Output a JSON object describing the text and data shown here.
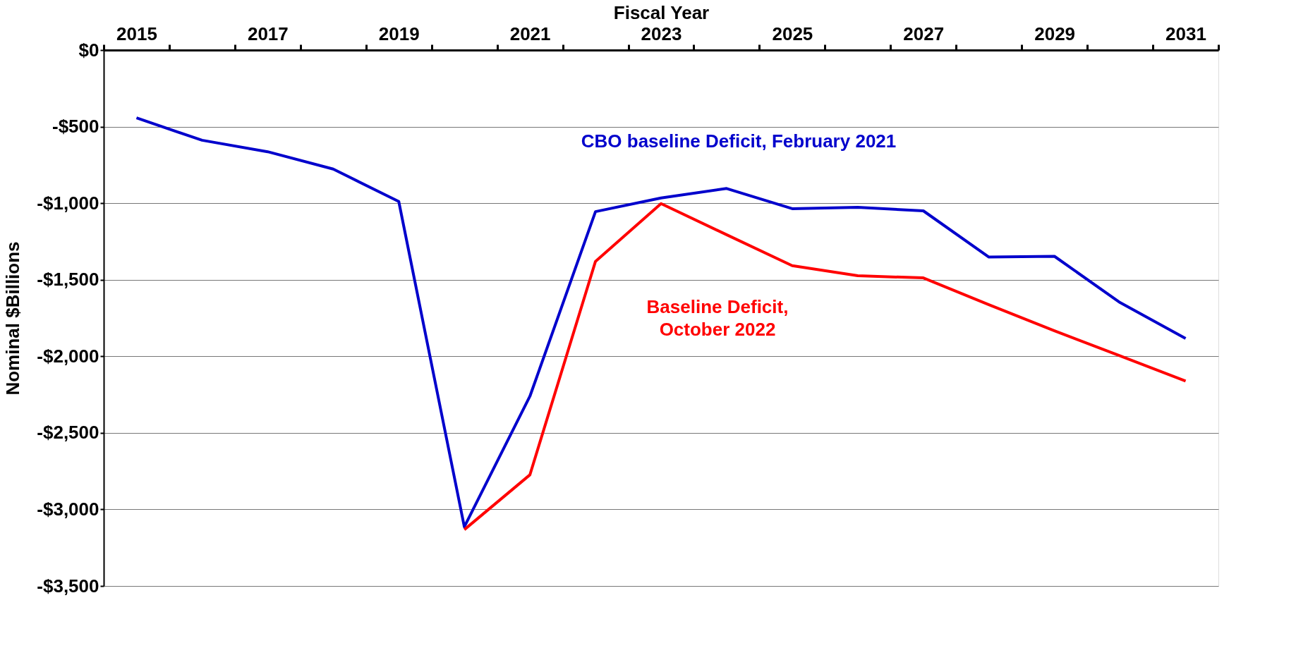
{
  "chart_data": {
    "type": "line",
    "xlabel": "Fiscal Year",
    "ylabel": "Nominal $Billions",
    "categories": [
      "2015",
      null,
      "2017",
      null,
      "2019",
      null,
      "2021",
      null,
      "2023",
      null,
      "2025",
      null,
      "2027",
      null,
      "2029",
      null,
      "2031"
    ],
    "series": [
      {
        "name": "CBO baseline Deficit, February 2021",
        "color": "#0000cc",
        "values": [
          -443,
          -589,
          -664,
          -777,
          -989,
          -3114,
          -2261,
          -1055,
          -966,
          -904,
          -1036,
          -1027,
          -1050,
          -1352,
          -1347,
          -1649,
          -1884
        ]
      },
      {
        "name": "Baseline Deficit, October 2022",
        "color": "#ff0000",
        "values": [
          null,
          null,
          null,
          null,
          null,
          -3132,
          -2774,
          -1380,
          -1003,
          -1206,
          -1408,
          -1474,
          -1488,
          -1663,
          -1833,
          -1997,
          -2162
        ]
      }
    ],
    "ylim": [
      -3500,
      0
    ],
    "yticks": [
      {
        "value": 0,
        "label": "$0"
      },
      {
        "value": -500,
        "label": "-$500"
      },
      {
        "value": -1000,
        "label": "-$1,000"
      },
      {
        "value": -1500,
        "label": "-$1,500"
      },
      {
        "value": -2000,
        "label": "-$2,000"
      },
      {
        "value": -2500,
        "label": "-$2,500"
      },
      {
        "value": -3000,
        "label": "-$3,000"
      },
      {
        "value": -3500,
        "label": "-$3,500"
      }
    ],
    "grid": "y",
    "legend": false,
    "marker": "none",
    "line_style": "solid"
  }
}
